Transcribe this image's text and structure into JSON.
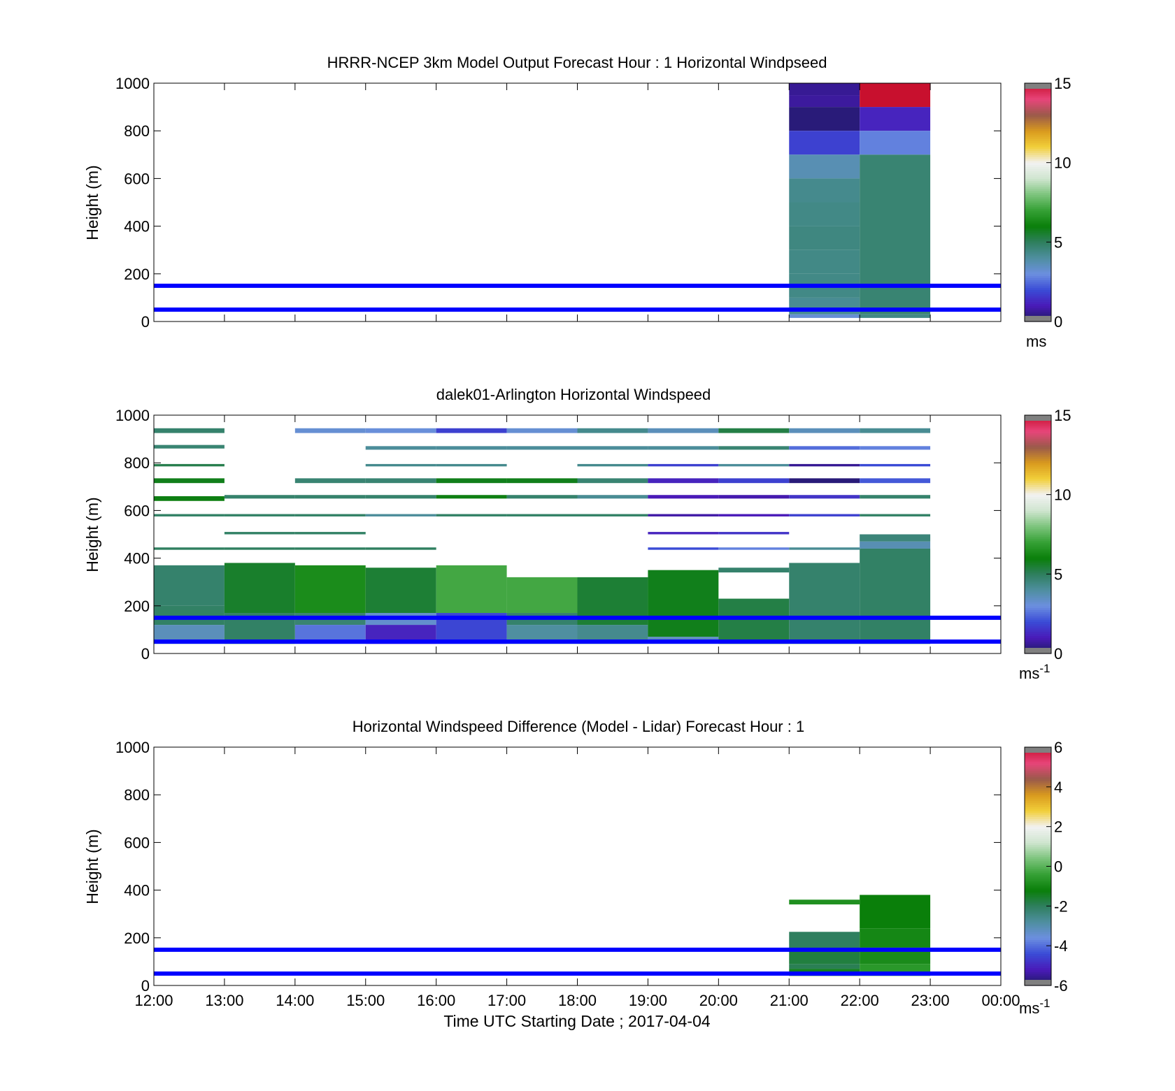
{
  "figure": {
    "xlabel": "Time UTC  Starting Date ; 2017-04-04",
    "x_ticks": [
      "12:00",
      "13:00",
      "14:00",
      "15:00",
      "16:00",
      "17:00",
      "18:00",
      "19:00",
      "20:00",
      "21:00",
      "22:00",
      "23:00",
      "00:00"
    ],
    "y_ticks": [
      "0",
      "200",
      "400",
      "600",
      "800",
      "1000"
    ],
    "ylabel": "Height (m)",
    "reference_lines_height_m": [
      50,
      150
    ],
    "reference_line_color": "#0000ff"
  },
  "colorscale": [
    "#1b1b5e",
    "#4a1ab8",
    "#3a4bd6",
    "#6c8fe0",
    "#4f8fa0",
    "#2f7f5f",
    "#0a7f0a",
    "#35a035",
    "#7cc47c",
    "#cfe5cf",
    "#f2f2f2",
    "#f2cf3a",
    "#d99a1e",
    "#9a5a4a",
    "#e8457a",
    "#c8102e"
  ],
  "chart_data": [
    {
      "type": "heatmap",
      "title": "HRRR-NCEP 3km Model Output   Forecast Hour : 1 Horizontal Windpseed",
      "ylabel": "Height (m)",
      "ylim": [
        0,
        1000
      ],
      "xlim": [
        "12:00",
        "00:00"
      ],
      "colorbar": {
        "label": "ms",
        "ticks": [
          "0",
          "5",
          "10",
          "15"
        ],
        "range": [
          0,
          15
        ]
      },
      "cells": [
        {
          "t": 21,
          "y0": 950,
          "y1": 1000,
          "v": 0.6
        },
        {
          "t": 21,
          "y0": 900,
          "y1": 950,
          "v": 0.7
        },
        {
          "t": 21,
          "y0": 800,
          "y1": 900,
          "v": 0.3
        },
        {
          "t": 21,
          "y0": 700,
          "y1": 800,
          "v": 1.8
        },
        {
          "t": 21,
          "y0": 600,
          "y1": 700,
          "v": 3.7
        },
        {
          "t": 21,
          "y0": 500,
          "y1": 600,
          "v": 4.3
        },
        {
          "t": 21,
          "y0": 400,
          "y1": 500,
          "v": 4.4
        },
        {
          "t": 21,
          "y0": 300,
          "y1": 400,
          "v": 4.5
        },
        {
          "t": 21,
          "y0": 200,
          "y1": 300,
          "v": 4.4
        },
        {
          "t": 21,
          "y0": 100,
          "y1": 200,
          "v": 4.4
        },
        {
          "t": 21,
          "y0": 30,
          "y1": 100,
          "v": 4.2
        },
        {
          "t": 21,
          "y0": 15,
          "y1": 30,
          "v": 3.2
        },
        {
          "t": 22,
          "y0": 900,
          "y1": 1000,
          "v": 15.2
        },
        {
          "t": 22,
          "y0": 800,
          "y1": 900,
          "v": 1.2
        },
        {
          "t": 22,
          "y0": 700,
          "y1": 800,
          "v": 2.8
        },
        {
          "t": 22,
          "y0": 30,
          "y1": 700,
          "v": 4.7
        },
        {
          "t": 22,
          "y0": 15,
          "y1": 30,
          "v": 4.4
        }
      ]
    },
    {
      "type": "heatmap",
      "title": "dalek01-Arlington  Horizontal Windspeed",
      "ylabel": "Height (m)",
      "ylim": [
        0,
        1000
      ],
      "xlim": [
        "12:00",
        "00:00"
      ],
      "colorbar": {
        "label": "ms",
        "label_superscript": "-1",
        "ticks": [
          "0",
          "5",
          "10",
          "15"
        ],
        "range": [
          0,
          15
        ]
      },
      "cells": [
        {
          "t": 12,
          "y0": 200,
          "y1": 370,
          "v": 4.8
        },
        {
          "t": 12,
          "y0": 120,
          "y1": 200,
          "v": 4.9
        },
        {
          "t": 12,
          "y0": 40,
          "y1": 120,
          "v": 3.6
        },
        {
          "t": 12,
          "y0": 925,
          "y1": 945,
          "v": 4.8
        },
        {
          "t": 12,
          "y0": 860,
          "y1": 875,
          "v": 4.7
        },
        {
          "t": 12,
          "y0": 785,
          "y1": 795,
          "v": 5.2
        },
        {
          "t": 12,
          "y0": 715,
          "y1": 735,
          "v": 5.8
        },
        {
          "t": 12,
          "y0": 640,
          "y1": 660,
          "v": 5.9
        },
        {
          "t": 12,
          "y0": 575,
          "y1": 585,
          "v": 4.9
        },
        {
          "t": 12,
          "y0": 435,
          "y1": 445,
          "v": 5.0
        },
        {
          "t": 13,
          "y0": 170,
          "y1": 380,
          "v": 5.6
        },
        {
          "t": 13,
          "y0": 40,
          "y1": 170,
          "v": 4.9
        },
        {
          "t": 13,
          "y0": 650,
          "y1": 665,
          "v": 4.8
        },
        {
          "t": 13,
          "y0": 575,
          "y1": 585,
          "v": 4.9
        },
        {
          "t": 13,
          "y0": 500,
          "y1": 510,
          "v": 4.9
        },
        {
          "t": 13,
          "y0": 435,
          "y1": 445,
          "v": 5.0
        },
        {
          "t": 14,
          "y0": 170,
          "y1": 370,
          "v": 6.4
        },
        {
          "t": 14,
          "y0": 120,
          "y1": 170,
          "v": 4.7
        },
        {
          "t": 14,
          "y0": 40,
          "y1": 120,
          "v": 2.6
        },
        {
          "t": 14,
          "y0": 925,
          "y1": 945,
          "v": 3.2
        },
        {
          "t": 14,
          "y0": 715,
          "y1": 735,
          "v": 4.7
        },
        {
          "t": 14,
          "y0": 650,
          "y1": 665,
          "v": 4.8
        },
        {
          "t": 14,
          "y0": 575,
          "y1": 585,
          "v": 4.9
        },
        {
          "t": 14,
          "y0": 500,
          "y1": 510,
          "v": 4.9
        },
        {
          "t": 14,
          "y0": 435,
          "y1": 445,
          "v": 5.0
        },
        {
          "t": 15,
          "y0": 170,
          "y1": 360,
          "v": 5.5
        },
        {
          "t": 15,
          "y0": 120,
          "y1": 170,
          "v": 3.3
        },
        {
          "t": 15,
          "y0": 40,
          "y1": 120,
          "v": 1.2
        },
        {
          "t": 15,
          "y0": 925,
          "y1": 945,
          "v": 3.1
        },
        {
          "t": 15,
          "y0": 855,
          "y1": 870,
          "v": 4.1
        },
        {
          "t": 15,
          "y0": 785,
          "y1": 795,
          "v": 4.3
        },
        {
          "t": 15,
          "y0": 715,
          "y1": 735,
          "v": 4.7
        },
        {
          "t": 15,
          "y0": 650,
          "y1": 665,
          "v": 4.8
        },
        {
          "t": 15,
          "y0": 575,
          "y1": 585,
          "v": 4.1
        },
        {
          "t": 15,
          "y0": 435,
          "y1": 445,
          "v": 5.0
        },
        {
          "t": 16,
          "y0": 170,
          "y1": 370,
          "v": 7.2
        },
        {
          "t": 16,
          "y0": 40,
          "y1": 170,
          "v": 1.9
        },
        {
          "t": 16,
          "y0": 925,
          "y1": 945,
          "v": 1.8
        },
        {
          "t": 16,
          "y0": 855,
          "y1": 870,
          "v": 4.1
        },
        {
          "t": 16,
          "y0": 785,
          "y1": 795,
          "v": 4.3
        },
        {
          "t": 16,
          "y0": 715,
          "y1": 735,
          "v": 5.8
        },
        {
          "t": 16,
          "y0": 650,
          "y1": 665,
          "v": 5.9
        },
        {
          "t": 16,
          "y0": 575,
          "y1": 585,
          "v": 4.9
        },
        {
          "t": 17,
          "y0": 170,
          "y1": 320,
          "v": 7.2
        },
        {
          "t": 17,
          "y0": 120,
          "y1": 170,
          "v": 4.8
        },
        {
          "t": 17,
          "y0": 40,
          "y1": 120,
          "v": 4.0
        },
        {
          "t": 17,
          "y0": 925,
          "y1": 945,
          "v": 3.2
        },
        {
          "t": 17,
          "y0": 855,
          "y1": 870,
          "v": 4.1
        },
        {
          "t": 17,
          "y0": 715,
          "y1": 735,
          "v": 5.8
        },
        {
          "t": 17,
          "y0": 650,
          "y1": 665,
          "v": 4.8
        },
        {
          "t": 17,
          "y0": 575,
          "y1": 585,
          "v": 4.9
        },
        {
          "t": 18,
          "y0": 120,
          "y1": 320,
          "v": 5.5
        },
        {
          "t": 18,
          "y0": 40,
          "y1": 120,
          "v": 4.3
        },
        {
          "t": 18,
          "y0": 925,
          "y1": 945,
          "v": 4.3
        },
        {
          "t": 18,
          "y0": 855,
          "y1": 870,
          "v": 4.1
        },
        {
          "t": 18,
          "y0": 785,
          "y1": 795,
          "v": 4.3
        },
        {
          "t": 18,
          "y0": 715,
          "y1": 735,
          "v": 4.7
        },
        {
          "t": 18,
          "y0": 650,
          "y1": 665,
          "v": 4.2
        },
        {
          "t": 18,
          "y0": 575,
          "y1": 585,
          "v": 4.9
        },
        {
          "t": 19,
          "y0": 70,
          "y1": 350,
          "v": 5.8
        },
        {
          "t": 19,
          "y0": 40,
          "y1": 70,
          "v": 3.5
        },
        {
          "t": 19,
          "y0": 925,
          "y1": 945,
          "v": 3.6
        },
        {
          "t": 19,
          "y0": 855,
          "y1": 870,
          "v": 4.1
        },
        {
          "t": 19,
          "y0": 785,
          "y1": 795,
          "v": 1.8
        },
        {
          "t": 19,
          "y0": 715,
          "y1": 735,
          "v": 1.2
        },
        {
          "t": 19,
          "y0": 650,
          "y1": 665,
          "v": 1.0
        },
        {
          "t": 19,
          "y0": 575,
          "y1": 585,
          "v": 0.8
        },
        {
          "t": 19,
          "y0": 500,
          "y1": 510,
          "v": 1.2
        },
        {
          "t": 19,
          "y0": 435,
          "y1": 445,
          "v": 2.0
        },
        {
          "t": 20,
          "y0": 40,
          "y1": 230,
          "v": 5.3
        },
        {
          "t": 20,
          "y0": 340,
          "y1": 360,
          "v": 4.8
        },
        {
          "t": 20,
          "y0": 925,
          "y1": 945,
          "v": 5.3
        },
        {
          "t": 20,
          "y0": 855,
          "y1": 870,
          "v": 4.7
        },
        {
          "t": 20,
          "y0": 785,
          "y1": 795,
          "v": 4.1
        },
        {
          "t": 20,
          "y0": 715,
          "y1": 735,
          "v": 1.8
        },
        {
          "t": 20,
          "y0": 650,
          "y1": 665,
          "v": 0.9
        },
        {
          "t": 20,
          "y0": 575,
          "y1": 585,
          "v": 1.0
        },
        {
          "t": 20,
          "y0": 500,
          "y1": 510,
          "v": 1.5
        },
        {
          "t": 20,
          "y0": 435,
          "y1": 445,
          "v": 2.8
        },
        {
          "t": 21,
          "y0": 40,
          "y1": 380,
          "v": 4.8
        },
        {
          "t": 21,
          "y0": 925,
          "y1": 945,
          "v": 3.6
        },
        {
          "t": 21,
          "y0": 855,
          "y1": 870,
          "v": 2.5
        },
        {
          "t": 21,
          "y0": 785,
          "y1": 795,
          "v": 0.6
        },
        {
          "t": 21,
          "y0": 715,
          "y1": 735,
          "v": 0.3
        },
        {
          "t": 21,
          "y0": 650,
          "y1": 665,
          "v": 1.5
        },
        {
          "t": 21,
          "y0": 575,
          "y1": 585,
          "v": 1.8
        },
        {
          "t": 21,
          "y0": 435,
          "y1": 445,
          "v": 4.2
        },
        {
          "t": 22,
          "y0": 40,
          "y1": 440,
          "v": 4.9
        },
        {
          "t": 22,
          "y0": 440,
          "y1": 470,
          "v": 3.7
        },
        {
          "t": 22,
          "y0": 470,
          "y1": 500,
          "v": 4.6
        },
        {
          "t": 22,
          "y0": 925,
          "y1": 945,
          "v": 4.2
        },
        {
          "t": 22,
          "y0": 855,
          "y1": 870,
          "v": 2.8
        },
        {
          "t": 22,
          "y0": 785,
          "y1": 795,
          "v": 2.0
        },
        {
          "t": 22,
          "y0": 715,
          "y1": 735,
          "v": 2.2
        },
        {
          "t": 22,
          "y0": 650,
          "y1": 665,
          "v": 4.8
        },
        {
          "t": 22,
          "y0": 575,
          "y1": 585,
          "v": 4.9
        }
      ]
    },
    {
      "type": "heatmap",
      "title": "Horizontal Windspeed Difference (Model - Lidar) Forecast Hour : 1",
      "ylabel": "Height (m)",
      "xlabel": "Time UTC  Starting Date ; 2017-04-04",
      "ylim": [
        0,
        1000
      ],
      "xlim": [
        "12:00",
        "00:00"
      ],
      "colorbar": {
        "label": "ms",
        "label_superscript": "-1",
        "ticks": [
          "-6",
          "-4",
          "-2",
          "0",
          "2",
          "4",
          "6"
        ],
        "range": [
          -6,
          6
        ]
      },
      "cells": [
        {
          "t": 21,
          "y0": 340,
          "y1": 360,
          "v": -0.8
        },
        {
          "t": 21,
          "y0": 160,
          "y1": 225,
          "v": -2.0
        },
        {
          "t": 21,
          "y0": 90,
          "y1": 160,
          "v": -1.7
        },
        {
          "t": 21,
          "y0": 70,
          "y1": 90,
          "v": -1.9
        },
        {
          "t": 21,
          "y0": 40,
          "y1": 70,
          "v": -1.4
        },
        {
          "t": 22,
          "y0": 240,
          "y1": 380,
          "v": -1.2
        },
        {
          "t": 22,
          "y0": 160,
          "y1": 240,
          "v": -1.0
        },
        {
          "t": 22,
          "y0": 90,
          "y1": 160,
          "v": -0.9
        },
        {
          "t": 22,
          "y0": 40,
          "y1": 90,
          "v": -0.6
        }
      ]
    }
  ]
}
